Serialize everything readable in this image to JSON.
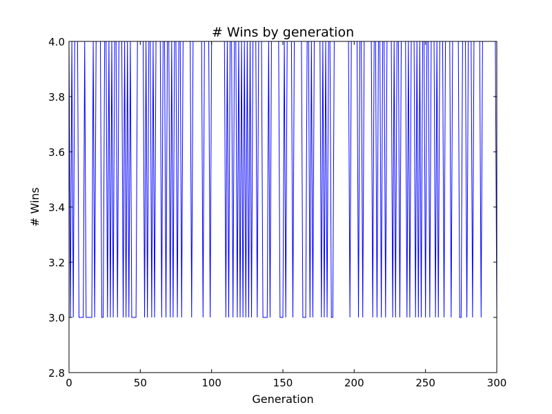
{
  "chart_data": {
    "type": "line",
    "title": "# Wins by generation",
    "xlabel": "Generation",
    "ylabel": "# Wins",
    "xlim": [
      0,
      300
    ],
    "ylim": [
      2.8,
      4.0
    ],
    "xticks": [
      0,
      50,
      100,
      150,
      200,
      250,
      300
    ],
    "xtick_labels": [
      "0",
      "50",
      "100",
      "150",
      "200",
      "250",
      "300"
    ],
    "yticks": [
      2.8,
      3.0,
      3.2,
      3.4,
      3.6,
      3.8,
      4.0
    ],
    "ytick_labels": [
      "2.8",
      "3.0",
      "3.2",
      "3.4",
      "3.6",
      "3.8",
      "4.0"
    ],
    "grid": false,
    "legend": "none",
    "line_color": "#0000ff",
    "series": [
      {
        "x_start": 0,
        "x_step": 1,
        "values": [
          4,
          3,
          4,
          3,
          4,
          4,
          4,
          3,
          3,
          3,
          3,
          4,
          3,
          3,
          3,
          3,
          3,
          4,
          3,
          4,
          4,
          4,
          4,
          3,
          3,
          4,
          4,
          3,
          4,
          3,
          4,
          3,
          4,
          4,
          3,
          4,
          4,
          4,
          3,
          4,
          3,
          4,
          3,
          4,
          3,
          3,
          3,
          3,
          4,
          4,
          4,
          4,
          4,
          3,
          4,
          3,
          4,
          4,
          3,
          4,
          3,
          4,
          4,
          4,
          4,
          3,
          4,
          4,
          3,
          4,
          4,
          3,
          4,
          3,
          4,
          4,
          3,
          4,
          4,
          3,
          4,
          4,
          4,
          4,
          4,
          4,
          3,
          4,
          4,
          4,
          4,
          4,
          4,
          4,
          3,
          4,
          4,
          4,
          4,
          3,
          4,
          4,
          4,
          4,
          4,
          4,
          4,
          4,
          4,
          4,
          3,
          4,
          3,
          4,
          4,
          3,
          4,
          4,
          3,
          4,
          3,
          4,
          3,
          4,
          3,
          4,
          3,
          4,
          3,
          4,
          4,
          4,
          3,
          4,
          4,
          4,
          3,
          3,
          3,
          3,
          4,
          3,
          4,
          4,
          4,
          4,
          4,
          4,
          3,
          3,
          3,
          4,
          3,
          4,
          4,
          4,
          4,
          3,
          4,
          4,
          4,
          4,
          4,
          4,
          3,
          3,
          3,
          4,
          4,
          3,
          4,
          3,
          4,
          4,
          4,
          4,
          4,
          3,
          4,
          3,
          4,
          3,
          4,
          4,
          3,
          3,
          4,
          4,
          4,
          4,
          4,
          4,
          4,
          4,
          4,
          4,
          4,
          3,
          4,
          4,
          4,
          4,
          4,
          3,
          4,
          4,
          3,
          4,
          4,
          4,
          4,
          4,
          4,
          3,
          4,
          4,
          3,
          4,
          4,
          3,
          4,
          4,
          3,
          4,
          4,
          4,
          4,
          3,
          4,
          3,
          4,
          4,
          3,
          4,
          4,
          4,
          4,
          3,
          4,
          3,
          4,
          4,
          4,
          3,
          4,
          3,
          4,
          3,
          4,
          4,
          3,
          4,
          4,
          3,
          4,
          4,
          4,
          3,
          4,
          3,
          4,
          4,
          4,
          3,
          4,
          4,
          4,
          4,
          3,
          4,
          4,
          4,
          4,
          4,
          3,
          3,
          4,
          4,
          4,
          3,
          4,
          4,
          4,
          3,
          4,
          4,
          4,
          4,
          4,
          3,
          4,
          4,
          4,
          4,
          4,
          4,
          4,
          4,
          4,
          4,
          3
        ]
      }
    ]
  }
}
